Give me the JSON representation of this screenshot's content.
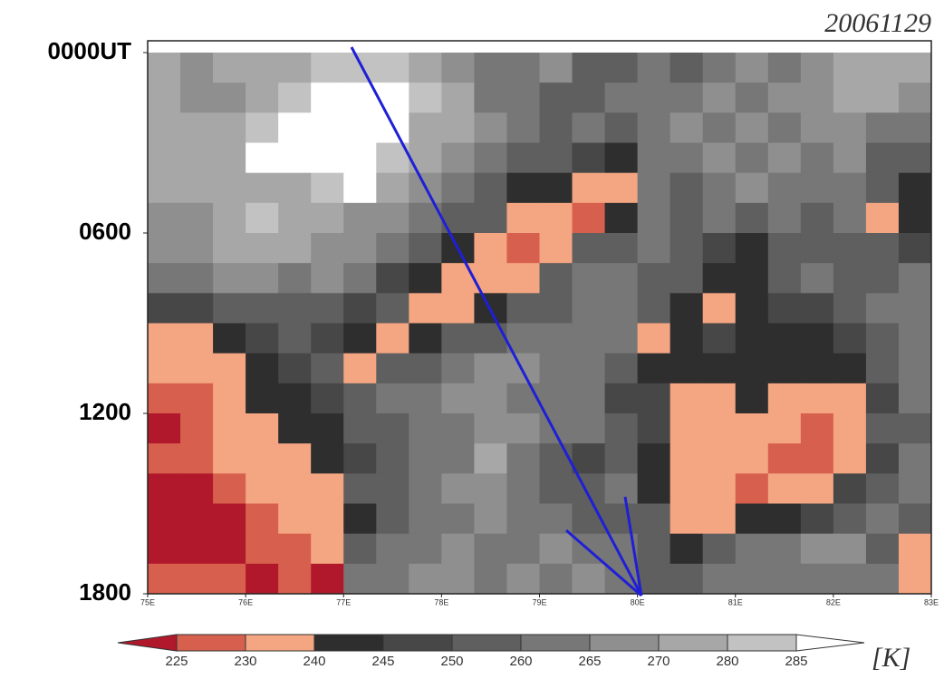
{
  "chart_data": {
    "type": "heatmap",
    "title": "20061129",
    "unit": "[K]",
    "xlim": [
      75,
      83
    ],
    "ylim": [
      0,
      18
    ],
    "xticks": [
      {
        "value": 75,
        "label": "75E"
      },
      {
        "value": 76,
        "label": "76E"
      },
      {
        "value": 77,
        "label": "77E"
      },
      {
        "value": 78,
        "label": "78E"
      },
      {
        "value": 79,
        "label": "79E"
      },
      {
        "value": 80,
        "label": "80E"
      },
      {
        "value": 81,
        "label": "81E"
      },
      {
        "value": 82,
        "label": "82E"
      },
      {
        "value": 83,
        "label": "83E"
      }
    ],
    "yticks": [
      {
        "value": 0,
        "label": "0000UT"
      },
      {
        "value": 6,
        "label": "0600"
      },
      {
        "value": 12,
        "label": "1200"
      },
      {
        "value": 18,
        "label": "1800"
      }
    ],
    "levels": [
      225,
      230,
      240,
      245,
      250,
      260,
      265,
      270,
      280,
      285
    ],
    "colors": [
      "#b2182b",
      "#d6604d",
      "#f4a582",
      "#2e2e2e",
      "#474747",
      "#5f5f5f",
      "#777777",
      "#8f8f8f",
      "#a7a7a7",
      "#c2c2c2",
      "#ffffff"
    ],
    "z": [
      [
        275,
        268,
        275,
        275,
        275,
        283,
        283,
        283,
        275,
        268,
        262,
        262,
        268,
        255,
        255,
        262,
        255,
        262,
        268,
        262,
        268,
        275,
        275,
        275
      ],
      [
        275,
        268,
        268,
        275,
        283,
        290,
        290,
        290,
        283,
        275,
        262,
        262,
        255,
        255,
        262,
        262,
        262,
        268,
        262,
        268,
        268,
        275,
        275,
        268
      ],
      [
        275,
        275,
        275,
        283,
        290,
        290,
        290,
        290,
        275,
        275,
        268,
        262,
        255,
        262,
        255,
        262,
        268,
        262,
        268,
        262,
        268,
        268,
        262,
        262
      ],
      [
        275,
        275,
        275,
        290,
        290,
        290,
        290,
        283,
        275,
        268,
        262,
        255,
        255,
        248,
        242,
        262,
        262,
        268,
        262,
        268,
        262,
        268,
        255,
        255
      ],
      [
        275,
        275,
        275,
        275,
        275,
        283,
        290,
        275,
        268,
        262,
        255,
        242,
        242,
        235,
        235,
        262,
        255,
        262,
        268,
        262,
        262,
        262,
        255,
        242
      ],
      [
        268,
        268,
        275,
        283,
        275,
        275,
        268,
        268,
        262,
        255,
        255,
        235,
        235,
        228,
        242,
        262,
        255,
        262,
        255,
        262,
        255,
        262,
        235,
        242
      ],
      [
        268,
        268,
        275,
        275,
        275,
        268,
        268,
        262,
        255,
        242,
        235,
        228,
        235,
        255,
        255,
        262,
        255,
        248,
        242,
        255,
        255,
        255,
        255,
        248
      ],
      [
        262,
        262,
        268,
        268,
        262,
        268,
        262,
        248,
        242,
        235,
        235,
        235,
        255,
        262,
        262,
        255,
        255,
        242,
        242,
        255,
        262,
        255,
        255,
        262
      ],
      [
        248,
        248,
        255,
        255,
        255,
        255,
        248,
        255,
        235,
        235,
        242,
        255,
        255,
        262,
        262,
        255,
        242,
        235,
        242,
        248,
        248,
        255,
        262,
        262
      ],
      [
        235,
        235,
        242,
        248,
        255,
        248,
        242,
        235,
        242,
        255,
        255,
        262,
        262,
        262,
        262,
        235,
        242,
        248,
        242,
        242,
        242,
        248,
        255,
        262
      ],
      [
        235,
        235,
        235,
        242,
        248,
        255,
        235,
        255,
        255,
        262,
        268,
        268,
        262,
        262,
        255,
        242,
        242,
        242,
        242,
        242,
        242,
        242,
        255,
        262
      ],
      [
        228,
        228,
        235,
        242,
        242,
        248,
        255,
        262,
        262,
        268,
        268,
        262,
        262,
        262,
        248,
        248,
        235,
        235,
        242,
        235,
        235,
        235,
        248,
        262
      ],
      [
        220,
        228,
        235,
        235,
        242,
        242,
        255,
        255,
        262,
        262,
        268,
        268,
        262,
        262,
        255,
        248,
        235,
        235,
        235,
        235,
        228,
        235,
        255,
        255
      ],
      [
        228,
        228,
        235,
        235,
        235,
        242,
        248,
        255,
        262,
        262,
        275,
        262,
        255,
        248,
        255,
        242,
        235,
        235,
        235,
        228,
        228,
        235,
        248,
        262
      ],
      [
        220,
        220,
        228,
        235,
        235,
        235,
        255,
        255,
        262,
        268,
        268,
        262,
        255,
        255,
        262,
        242,
        235,
        235,
        228,
        235,
        235,
        248,
        255,
        262
      ],
      [
        220,
        220,
        220,
        228,
        235,
        235,
        242,
        255,
        262,
        262,
        268,
        262,
        262,
        255,
        255,
        255,
        235,
        235,
        242,
        242,
        248,
        255,
        262,
        255
      ],
      [
        220,
        220,
        220,
        228,
        228,
        235,
        255,
        262,
        262,
        268,
        262,
        262,
        268,
        262,
        262,
        255,
        242,
        255,
        262,
        262,
        268,
        268,
        255,
        235
      ],
      [
        228,
        228,
        228,
        220,
        228,
        220,
        262,
        262,
        268,
        268,
        262,
        268,
        262,
        268,
        262,
        255,
        255,
        262,
        262,
        262,
        262,
        262,
        262,
        235
      ]
    ]
  }
}
